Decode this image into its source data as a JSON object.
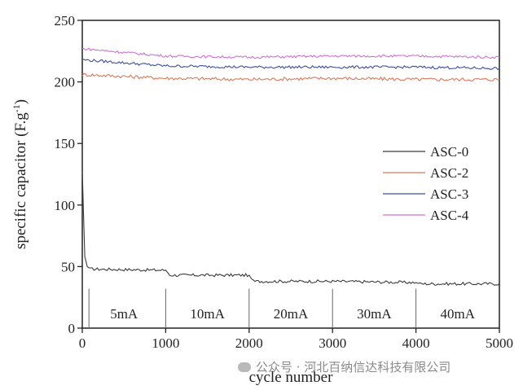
{
  "chart_data": {
    "type": "line",
    "xlabel": "cycle number",
    "ylabel": "specific capacitor (F.g",
    "ylabel_sup": "-1",
    "ylabel_close": ")",
    "xlim": [
      0,
      5000
    ],
    "ylim": [
      0,
      250
    ],
    "x_ticks": [
      0,
      1000,
      2000,
      3000,
      4000,
      5000
    ],
    "y_ticks": [
      0,
      50,
      100,
      150,
      200,
      250
    ],
    "legend_position": "right",
    "series": [
      {
        "name": "ASC-0",
        "color": "#3a3a3a",
        "x": [
          0,
          30,
          60,
          100,
          1000,
          1050,
          2000,
          2050,
          3000,
          4000,
          4050,
          5000
        ],
        "y": [
          128,
          58,
          50,
          48,
          47,
          43,
          43,
          38,
          38,
          37,
          36,
          36
        ]
      },
      {
        "name": "ASC-2",
        "color": "#d9795a",
        "x": [
          0,
          1000,
          2000,
          3000,
          4000,
          5000
        ],
        "y": [
          206,
          203,
          202,
          203,
          202,
          202
        ]
      },
      {
        "name": "ASC-3",
        "color": "#3c4ea0",
        "x": [
          0,
          1000,
          2000,
          3000,
          4000,
          5000
        ],
        "y": [
          218,
          213,
          212,
          212,
          212,
          211
        ]
      },
      {
        "name": "ASC-4",
        "color": "#d070d6",
        "x": [
          0,
          1000,
          2000,
          3000,
          4000,
          5000
        ],
        "y": [
          227,
          221,
          220,
          221,
          221,
          220
        ]
      }
    ],
    "rate_bands": [
      {
        "label": "5mA",
        "x_start": 0,
        "x_end": 1000
      },
      {
        "label": "10mA",
        "x_start": 1000,
        "x_end": 2000
      },
      {
        "label": "20mA",
        "x_start": 2000,
        "x_end": 3000
      },
      {
        "label": "30mA",
        "x_start": 3000,
        "x_end": 4000
      },
      {
        "label": "40mA",
        "x_start": 4000,
        "x_end": 5000
      }
    ]
  },
  "watermark": {
    "icon": "wechat-icon",
    "text": "公众号 · 河北百纳信达科技有限公司"
  }
}
